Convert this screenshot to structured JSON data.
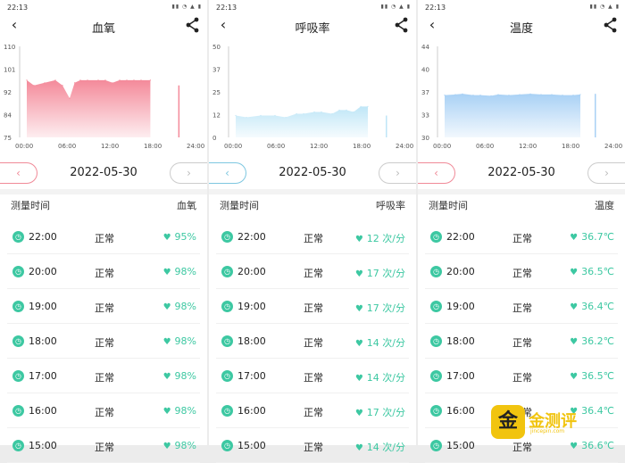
{
  "panels": [
    {
      "status_time": "22:13",
      "title": "血氧",
      "date": "2022-05-30",
      "list_time_header": "测量时间",
      "list_value_header": "血氧",
      "accent": "#f08a98",
      "chart_data": {
        "type": "area",
        "x_ticks": [
          "00:00",
          "06:00",
          "12:00",
          "18:00",
          "24:00"
        ],
        "y_ticks": [
          "110",
          "101",
          "92",
          "84",
          "75"
        ],
        "ylim": [
          75,
          110
        ],
        "color": "#f48a9a",
        "x": [
          0.5,
          1.5,
          3,
          4.5,
          5.5,
          6.5,
          7.2,
          8,
          9,
          10.5,
          11.5,
          12.5,
          13.5,
          14.5,
          15.5,
          16.5,
          17.8,
          21.7
        ],
        "y": [
          97,
          95,
          96,
          97,
          95,
          90,
          96,
          97,
          97,
          97,
          97,
          96,
          97,
          97,
          97,
          97,
          97,
          95
        ]
      },
      "rows": [
        {
          "time": "22:00",
          "status": "正常",
          "value": "95%"
        },
        {
          "time": "20:00",
          "status": "正常",
          "value": "98%"
        },
        {
          "time": "19:00",
          "status": "正常",
          "value": "98%"
        },
        {
          "time": "18:00",
          "status": "正常",
          "value": "98%"
        },
        {
          "time": "17:00",
          "status": "正常",
          "value": "98%"
        },
        {
          "time": "16:00",
          "status": "正常",
          "value": "98%"
        },
        {
          "time": "15:00",
          "status": "正常",
          "value": "98%"
        }
      ]
    },
    {
      "status_time": "22:13",
      "title": "呼吸率",
      "date": "2022-05-30",
      "list_time_header": "测量时间",
      "list_value_header": "呼吸率",
      "accent": "#7ec7e0",
      "chart_data": {
        "type": "area",
        "x_ticks": [
          "00:00",
          "06:00",
          "12:00",
          "18:00",
          "24:00"
        ],
        "y_ticks": [
          "50",
          "37",
          "25",
          "12",
          "0"
        ],
        "ylim": [
          0,
          50
        ],
        "color": "#bfe6f7",
        "x": [
          0.5,
          2,
          4,
          6,
          7.5,
          9,
          10,
          11.5,
          12.5,
          14,
          15,
          16,
          17,
          18,
          19,
          21.5
        ],
        "y": [
          12,
          11,
          12,
          12,
          11,
          13,
          13,
          14,
          14,
          13,
          15,
          15,
          14,
          17,
          17,
          12
        ]
      },
      "rows": [
        {
          "time": "22:00",
          "status": "正常",
          "value": "12 次/分"
        },
        {
          "time": "20:00",
          "status": "正常",
          "value": "17 次/分"
        },
        {
          "time": "19:00",
          "status": "正常",
          "value": "17 次/分"
        },
        {
          "time": "18:00",
          "status": "正常",
          "value": "14 次/分"
        },
        {
          "time": "17:00",
          "status": "正常",
          "value": "14 次/分"
        },
        {
          "time": "16:00",
          "status": "正常",
          "value": "17 次/分"
        },
        {
          "time": "15:00",
          "status": "正常",
          "value": "14 次/分"
        }
      ]
    },
    {
      "status_time": "22:13",
      "title": "温度",
      "date": "2022-05-30",
      "list_time_header": "测量时间",
      "list_value_header": "温度",
      "accent": "#f08a98",
      "chart_data": {
        "type": "area",
        "x_ticks": [
          "00:00",
          "06:00",
          "12:00",
          "18:00",
          "24:00"
        ],
        "y_ticks": [
          "44",
          "40",
          "37",
          "33",
          "30"
        ],
        "ylim": [
          30,
          44
        ],
        "color": "#a9d1f5",
        "x": [
          0.5,
          2,
          3,
          4.5,
          5.5,
          7,
          8,
          9.5,
          11,
          12.5,
          14,
          15.5,
          17,
          18.5,
          19.5,
          21.5
        ],
        "y": [
          36.5,
          36.6,
          36.7,
          36.5,
          36.5,
          36.4,
          36.6,
          36.5,
          36.6,
          36.7,
          36.6,
          36.6,
          36.5,
          36.5,
          36.6,
          36.7
        ]
      },
      "rows": [
        {
          "time": "22:00",
          "status": "正常",
          "value": "36.7℃"
        },
        {
          "time": "20:00",
          "status": "正常",
          "value": "36.5℃"
        },
        {
          "time": "19:00",
          "status": "正常",
          "value": "36.4℃"
        },
        {
          "time": "18:00",
          "status": "正常",
          "value": "36.2℃"
        },
        {
          "time": "17:00",
          "status": "正常",
          "value": "36.5℃"
        },
        {
          "time": "16:00",
          "status": "正常",
          "value": "36.4℃"
        },
        {
          "time": "15:00",
          "status": "正常",
          "value": "36.6℃"
        }
      ]
    }
  ],
  "watermark": {
    "badge": "金",
    "text": "金测评",
    "sub": "jincepin.com"
  }
}
